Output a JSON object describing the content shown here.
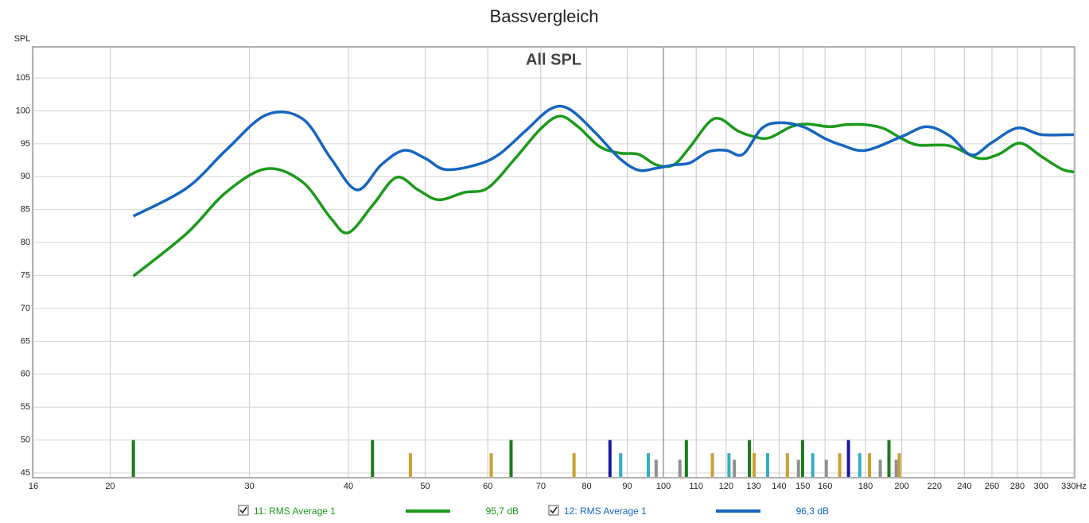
{
  "chart_data": {
    "type": "line",
    "title": "Bassvergleich",
    "subtitle": "All SPL",
    "y_label": "SPL",
    "x_scale": "log",
    "xlim": [
      16,
      330
    ],
    "ylim": [
      44.4,
      109.6
    ],
    "grid": true,
    "xticks": [
      16,
      20,
      30,
      40,
      50,
      60,
      70,
      80,
      90,
      100,
      110,
      120,
      130,
      140,
      150,
      160,
      180,
      200,
      220,
      240,
      260,
      280,
      300,
      {
        "value": 330,
        "label": "330Hz"
      }
    ],
    "yticks": [
      45,
      50,
      55,
      60,
      65,
      70,
      75,
      80,
      85,
      90,
      95,
      100,
      105
    ],
    "series": [
      {
        "name": "11: RMS Average 1",
        "color": "#1a9a1a",
        "level": 95.7,
        "level_label": "95,7 dB",
        "x": [
          21.4,
          25,
          28,
          31.5,
          35,
          38,
          40,
          43,
          46,
          49,
          52,
          56,
          60,
          65,
          70,
          74,
          78,
          83,
          88,
          93,
          98,
          103,
          108,
          114,
          118,
          124,
          130,
          136,
          145,
          152,
          162,
          170,
          180,
          190,
          200,
          210,
          230,
          250,
          265,
          282,
          300,
          318,
          330
        ],
        "values": [
          74.9,
          81.4,
          87.6,
          91.2,
          89.2,
          83.7,
          81.5,
          85.8,
          89.9,
          88,
          86.5,
          87.6,
          88.3,
          92.8,
          97.3,
          99.2,
          97.6,
          94.6,
          93.6,
          93.4,
          91.8,
          91.8,
          94.5,
          98.2,
          98.8,
          97,
          96.1,
          95.9,
          97.6,
          98,
          97.6,
          97.9,
          97.9,
          97.3,
          95.8,
          94.8,
          94.7,
          92.8,
          93.4,
          95.1,
          93.1,
          91.2,
          90.7
        ]
      },
      {
        "name": "12: RMS Average 1",
        "color": "#1565c0",
        "level": 96.3,
        "level_label": "96,3 dB",
        "x": [
          21.4,
          25,
          28,
          31.5,
          35,
          38,
          41,
          44,
          47,
          50,
          53,
          58,
          62,
          67,
          72,
          76,
          82,
          88,
          93,
          98,
          103,
          108,
          114,
          120,
          126,
          133,
          140,
          150,
          160,
          168,
          180,
          200,
          215,
          230,
          245,
          260,
          280,
          300,
          330
        ],
        "values": [
          84,
          88.3,
          94,
          99.4,
          98.8,
          92.8,
          88,
          91.8,
          94,
          92.8,
          91.1,
          91.8,
          93.4,
          97,
          100.3,
          100.3,
          96.7,
          92.8,
          91,
          91.3,
          91.8,
          92.1,
          93.8,
          94,
          93.4,
          97.3,
          98.2,
          97.6,
          95.8,
          94.8,
          94,
          96.1,
          97.6,
          96.2,
          93.3,
          95.2,
          97.4,
          96.4,
          96.4
        ]
      }
    ],
    "markers": {
      "x": [
        21.4,
        42.9,
        47.9,
        60.6,
        64.2,
        77.1,
        85.6,
        88.3,
        95.7,
        97.9,
        104.9,
        106.9,
        115.3,
        121,
        122.9,
        128.4,
        130.2,
        135.4,
        143.4,
        148.1,
        149.9,
        154.4,
        160.6,
        167,
        171.3,
        177,
        182.1,
        187.9,
        192.7,
        196.8,
        198.6
      ],
      "values": [
        50,
        50,
        48,
        48,
        50,
        48,
        50,
        48,
        48,
        47,
        47,
        50,
        48,
        48,
        47,
        50,
        48,
        48,
        48,
        47,
        50,
        48,
        47,
        48,
        50,
        48,
        48,
        47,
        50,
        47,
        48
      ],
      "colors": [
        "#1e7a1e",
        "#1e7a1e",
        "#c8a030",
        "#c8a030",
        "#1e7a1e",
        "#c8a030",
        "#1a1aa0",
        "#30b0c0",
        "#30b0c0",
        "#909090",
        "#909090",
        "#1e7a1e",
        "#c8a030",
        "#30b0c0",
        "#909090",
        "#1e7a1e",
        "#c8a030",
        "#30b0c0",
        "#c8a030",
        "#909090",
        "#1e7a1e",
        "#30b0c0",
        "#909090",
        "#c8a030",
        "#1a1aa0",
        "#30b0c0",
        "#c8a030",
        "#909090",
        "#1e7a1e",
        "#909090",
        "#c8a030"
      ]
    }
  }
}
